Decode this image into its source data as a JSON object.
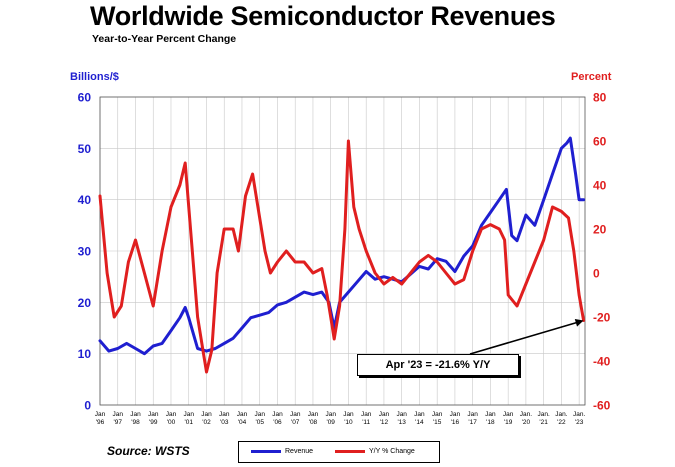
{
  "chart_data": {
    "type": "line",
    "title": "Worldwide Semiconductor Revenues",
    "subtitle": "Year-to-Year Percent Change",
    "ylabel_left": "Billions/$",
    "ylabel_right": "Percent",
    "ylim_left": [
      0,
      60
    ],
    "ylim_right": [
      -60,
      80
    ],
    "yticks_left": [
      "0",
      "10",
      "20",
      "30",
      "40",
      "50",
      "60"
    ],
    "yticks_right": [
      "-60",
      "-40",
      "-20",
      "0",
      "20",
      "40",
      "60",
      "80"
    ],
    "grid": true,
    "xlim": [
      1996,
      2023.33
    ],
    "xtick_labels": [
      {
        "mon": "Jan",
        "yr": "'96"
      },
      {
        "mon": "Jan",
        "yr": "'97"
      },
      {
        "mon": "Jan",
        "yr": "'98"
      },
      {
        "mon": "Jan",
        "yr": "'99"
      },
      {
        "mon": "Jan",
        "yr": "'00"
      },
      {
        "mon": "Jan",
        "yr": "'01"
      },
      {
        "mon": "Jan",
        "yr": "'02"
      },
      {
        "mon": "Jan",
        "yr": "'03"
      },
      {
        "mon": "Jan",
        "yr": "'04"
      },
      {
        "mon": "Jan",
        "yr": "'05"
      },
      {
        "mon": "Jan",
        "yr": "'06"
      },
      {
        "mon": "Jan",
        "yr": "'07"
      },
      {
        "mon": "Jan",
        "yr": "'08"
      },
      {
        "mon": "Jan",
        "yr": "'09"
      },
      {
        "mon": "Jan",
        "yr": "'10"
      },
      {
        "mon": "Jan",
        "yr": "'11"
      },
      {
        "mon": "Jan",
        "yr": "'12"
      },
      {
        "mon": "Jan",
        "yr": "'13"
      },
      {
        "mon": "Jan",
        "yr": "'14"
      },
      {
        "mon": "Jan",
        "yr": "'15"
      },
      {
        "mon": "Jan",
        "yr": "'16"
      },
      {
        "mon": "Jan",
        "yr": "'17"
      },
      {
        "mon": "Jan",
        "yr": "'18"
      },
      {
        "mon": "Jan",
        "yr": "'19"
      },
      {
        "mon": "Jan.",
        "yr": "'20"
      },
      {
        "mon": "Jan.",
        "yr": "'21"
      },
      {
        "mon": "Jan.",
        "yr": "'22"
      },
      {
        "mon": "Jan.",
        "yr": "'23"
      }
    ],
    "series": [
      {
        "name": "Revenue",
        "axis": "left",
        "color": "#1f1fd0",
        "x": [
          1996.0,
          1996.5,
          1997.0,
          1997.5,
          1998.0,
          1998.5,
          1999.0,
          1999.5,
          2000.0,
          2000.5,
          2000.8,
          2001.0,
          2001.5,
          2002.0,
          2002.5,
          2003.0,
          2003.5,
          2004.0,
          2004.5,
          2005.0,
          2005.5,
          2006.0,
          2006.5,
          2007.0,
          2007.5,
          2008.0,
          2008.5,
          2008.9,
          2009.2,
          2009.5,
          2010.0,
          2010.5,
          2011.0,
          2011.5,
          2012.0,
          2012.5,
          2013.0,
          2013.5,
          2014.0,
          2014.5,
          2015.0,
          2015.5,
          2016.0,
          2016.5,
          2017.0,
          2017.5,
          2018.0,
          2018.5,
          2018.9,
          2019.2,
          2019.5,
          2020.0,
          2020.5,
          2021.0,
          2021.5,
          2022.0,
          2022.3,
          2022.5,
          2022.8,
          2023.0,
          2023.25
        ],
        "values": [
          12.5,
          10.5,
          11,
          12,
          11,
          10,
          11.5,
          12,
          14.5,
          17,
          19,
          17,
          11,
          10.5,
          11,
          12,
          13,
          15,
          17,
          17.5,
          18,
          19.5,
          20,
          21,
          22,
          21.5,
          22,
          20,
          15,
          20,
          22,
          24,
          26,
          24.5,
          25,
          24.5,
          24,
          25.5,
          27,
          26.5,
          28.5,
          28,
          26,
          29,
          31,
          35,
          37.5,
          40,
          42,
          33,
          32,
          37,
          35,
          40,
          45,
          50,
          51,
          52,
          45,
          40,
          40
        ]
      },
      {
        "name": "Y/Y % Change",
        "axis": "right",
        "color": "#e01f1f",
        "x": [
          1996.0,
          1996.4,
          1996.8,
          1997.2,
          1997.6,
          1998.0,
          1998.5,
          1999.0,
          1999.5,
          2000.0,
          2000.5,
          2000.8,
          2001.2,
          2001.5,
          2001.8,
          2002.0,
          2002.3,
          2002.6,
          2003.0,
          2003.5,
          2003.8,
          2004.2,
          2004.6,
          2005.0,
          2005.3,
          2005.6,
          2006.0,
          2006.5,
          2007.0,
          2007.5,
          2008.0,
          2008.5,
          2008.8,
          2009.0,
          2009.2,
          2009.5,
          2009.8,
          2010.0,
          2010.3,
          2010.6,
          2011.0,
          2011.5,
          2012.0,
          2012.5,
          2013.0,
          2013.5,
          2014.0,
          2014.5,
          2015.0,
          2015.5,
          2016.0,
          2016.5,
          2017.0,
          2017.5,
          2018.0,
          2018.5,
          2018.8,
          2019.0,
          2019.5,
          2020.0,
          2020.5,
          2021.0,
          2021.5,
          2022.0,
          2022.4,
          2022.7,
          2023.0,
          2023.25
        ],
        "values": [
          35,
          0,
          -20,
          -15,
          5,
          15,
          0,
          -15,
          10,
          30,
          40,
          50,
          10,
          -20,
          -35,
          -45,
          -35,
          0,
          20,
          20,
          10,
          35,
          45,
          25,
          10,
          0,
          5,
          10,
          5,
          5,
          0,
          2,
          -10,
          -20,
          -30,
          -15,
          20,
          60,
          30,
          20,
          10,
          0,
          -5,
          -2,
          -5,
          0,
          5,
          8,
          5,
          0,
          -5,
          -3,
          10,
          20,
          22,
          20,
          15,
          -10,
          -15,
          -5,
          5,
          15,
          30,
          28,
          25,
          10,
          -10,
          -21.6
        ]
      }
    ],
    "annotation": "Apr '23 = -21.6% Y/Y",
    "annotation_point": {
      "x": 2023.25,
      "y": -21.6
    }
  },
  "source": "Source: WSTS",
  "legend": {
    "revenue_label": "Revenue",
    "yy_label": "Y/Y % Change",
    "revenue_color": "#1f1fd0",
    "yy_color": "#e01f1f"
  }
}
